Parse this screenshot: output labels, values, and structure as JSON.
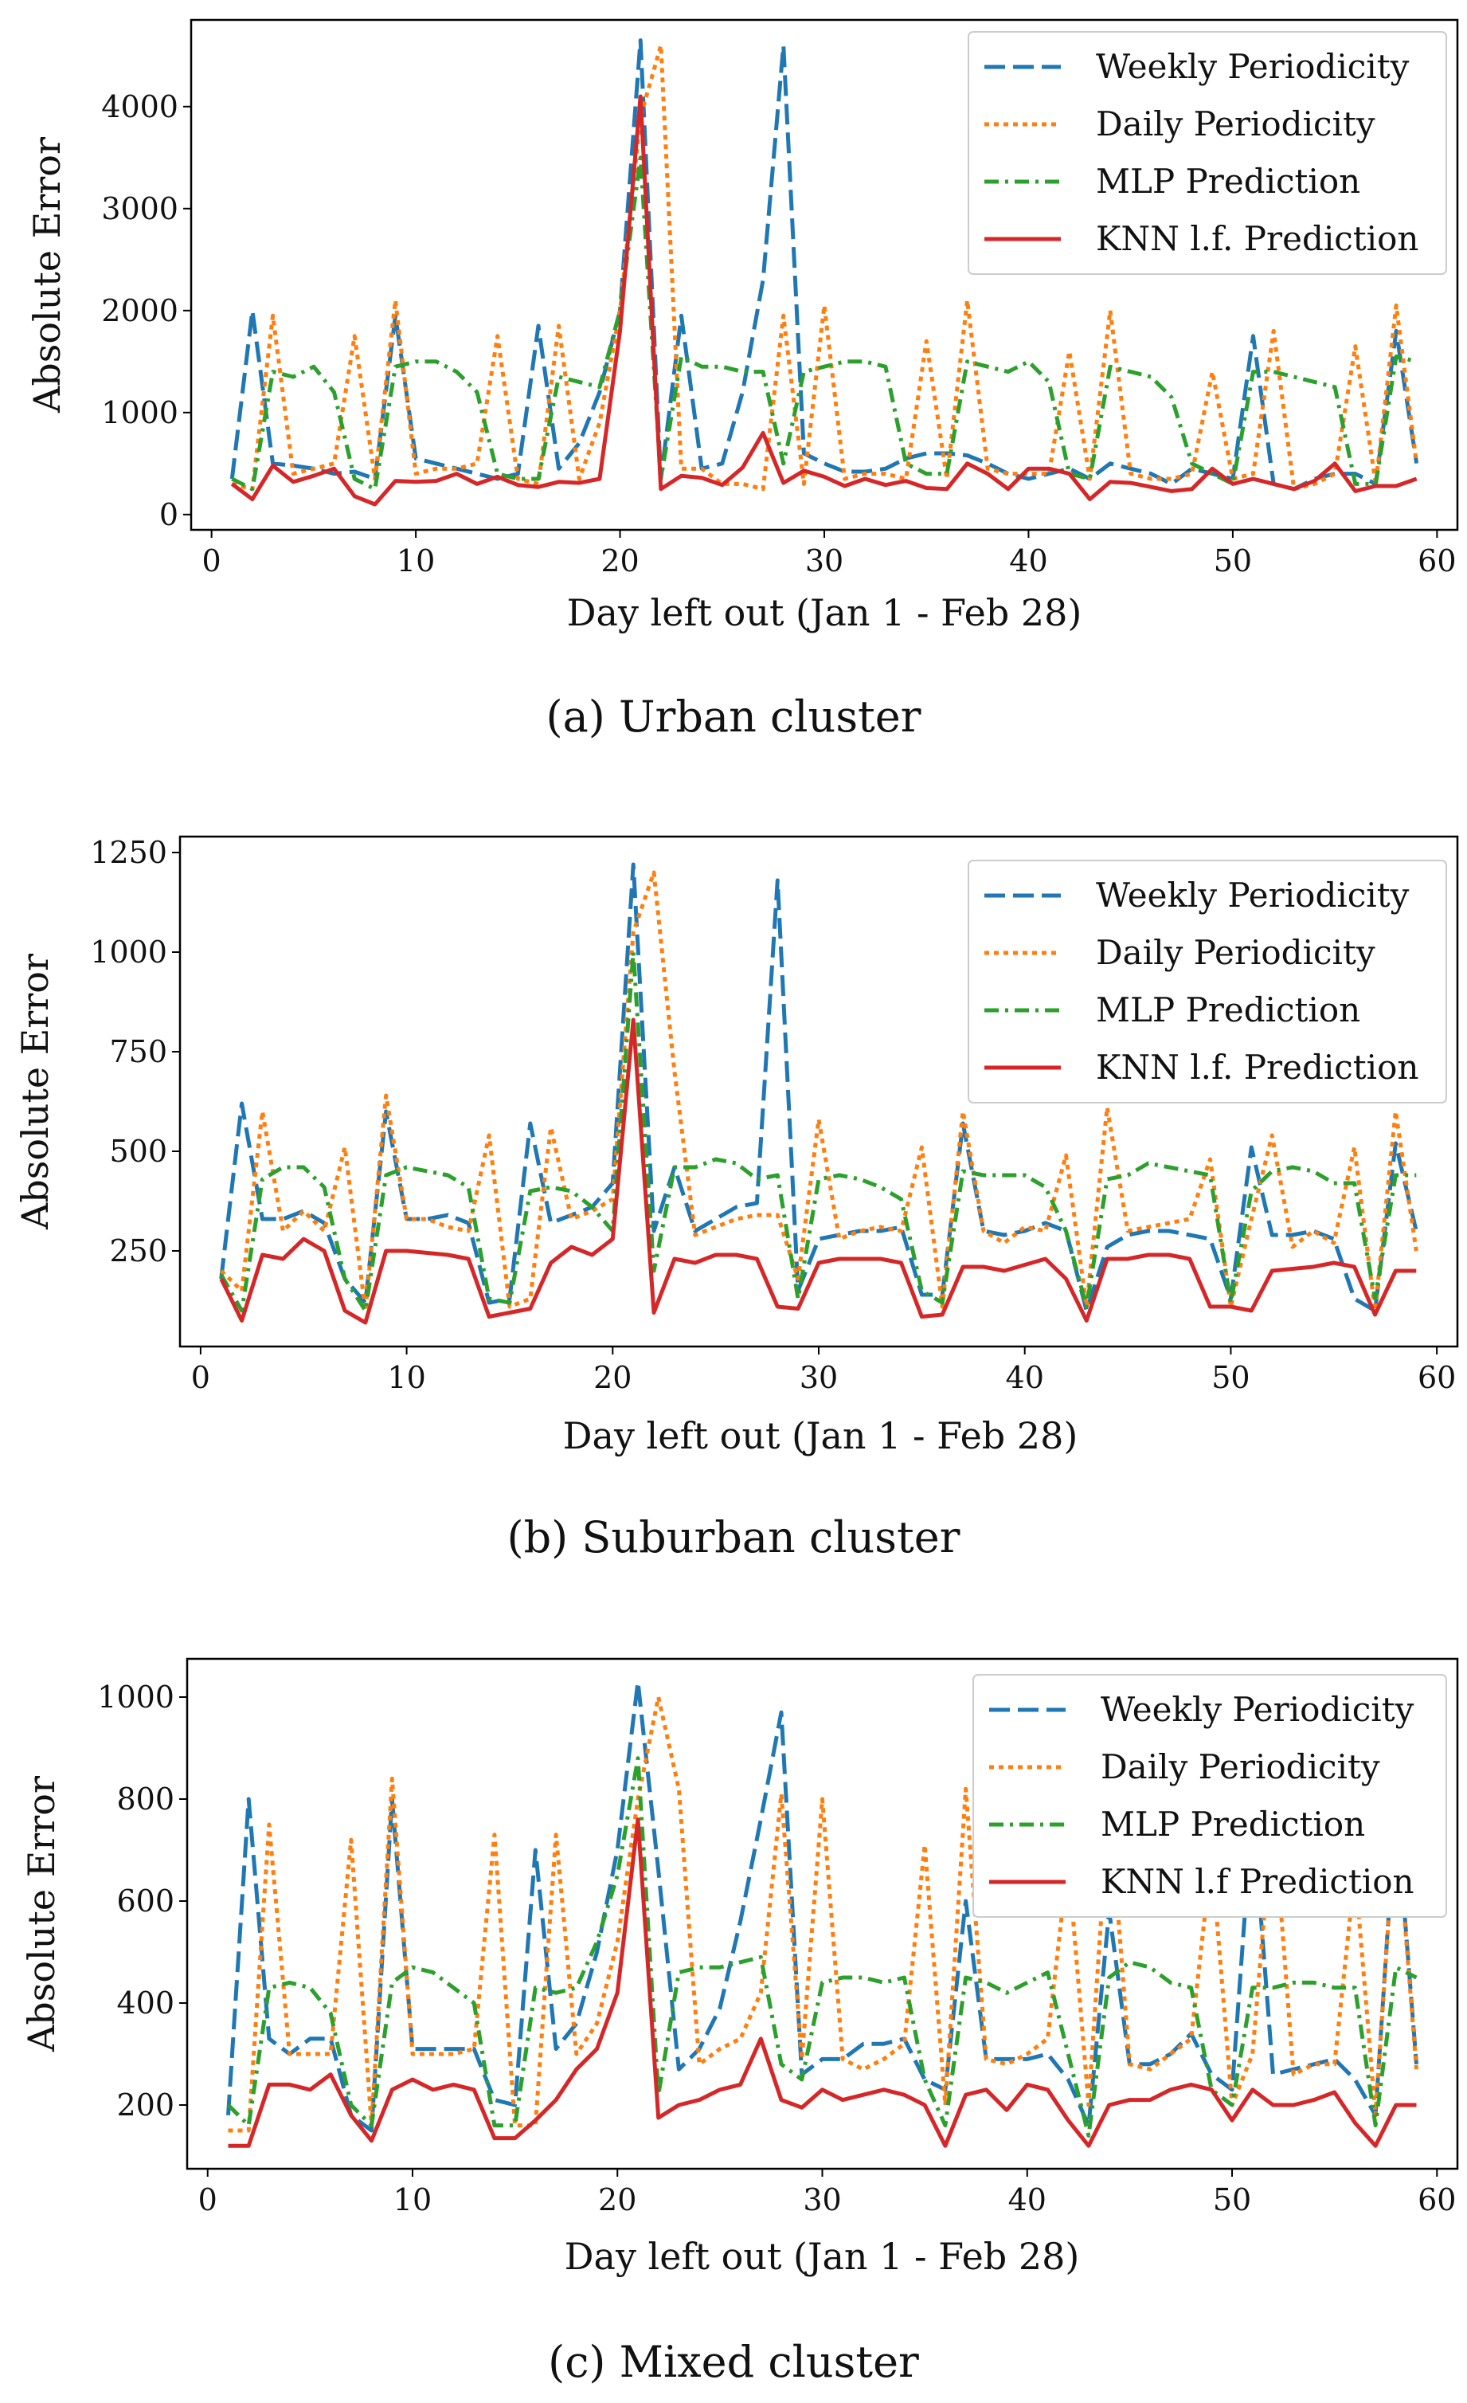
{
  "chart_data": [
    {
      "type": "line",
      "caption": "(a)  Urban cluster",
      "xlabel": "Day left out (Jan 1 - Feb 28)",
      "ylabel": "Absolute Error",
      "xlim": [
        -1,
        61
      ],
      "ylim": [
        -150,
        4850
      ],
      "xticks": [
        0,
        10,
        20,
        30,
        40,
        50,
        60
      ],
      "yticks": [
        0,
        1000,
        2000,
        3000,
        4000
      ],
      "legend_position": "top-right",
      "x": [
        1,
        2,
        3,
        4,
        5,
        6,
        7,
        8,
        9,
        10,
        11,
        12,
        13,
        14,
        15,
        16,
        17,
        18,
        19,
        20,
        21,
        22,
        23,
        24,
        25,
        26,
        27,
        28,
        29,
        30,
        31,
        32,
        33,
        34,
        35,
        36,
        37,
        38,
        39,
        40,
        41,
        42,
        43,
        44,
        45,
        46,
        47,
        48,
        49,
        50,
        51,
        52,
        53,
        54,
        55,
        56,
        57,
        58,
        59
      ],
      "series": [
        {
          "name": "Weekly Periodicity",
          "color": "#1f77b4",
          "style": "dashed",
          "values": [
            350,
            2000,
            500,
            480,
            450,
            400,
            420,
            350,
            1950,
            550,
            500,
            450,
            400,
            350,
            400,
            1850,
            450,
            700,
            1200,
            2000,
            4650,
            350,
            1950,
            450,
            500,
            1200,
            2300,
            4600,
            600,
            500,
            420,
            420,
            450,
            550,
            600,
            600,
            580,
            500,
            400,
            350,
            400,
            450,
            350,
            500,
            450,
            400,
            300,
            450,
            400,
            350,
            1750,
            300,
            250,
            350,
            400,
            400,
            300,
            1800,
            500
          ]
        },
        {
          "name": "Daily Periodicity",
          "color": "#ff7f0e",
          "style": "dotted",
          "values": [
            300,
            250,
            1950,
            400,
            450,
            500,
            1750,
            350,
            2100,
            400,
            450,
            450,
            500,
            1750,
            350,
            300,
            1850,
            350,
            900,
            2000,
            3900,
            4600,
            450,
            450,
            300,
            300,
            250,
            1950,
            300,
            2050,
            350,
            400,
            400,
            350,
            1700,
            350,
            2100,
            450,
            400,
            400,
            400,
            1600,
            350,
            2000,
            400,
            350,
            350,
            400,
            1400,
            350,
            400,
            1800,
            250,
            300,
            400,
            1650,
            300,
            2050,
            500
          ]
        },
        {
          "name": "MLP Prediction",
          "color": "#2ca02c",
          "style": "dashdot",
          "values": [
            350,
            250,
            1400,
            1350,
            1450,
            1200,
            350,
            250,
            1450,
            1500,
            1500,
            1400,
            1200,
            400,
            350,
            350,
            1350,
            1300,
            1250,
            2000,
            3500,
            350,
            1550,
            1450,
            1450,
            1400,
            1400,
            500,
            1400,
            1450,
            1500,
            1500,
            1450,
            500,
            400,
            400,
            1500,
            1450,
            1400,
            1500,
            1300,
            400,
            350,
            1450,
            1400,
            1350,
            1150,
            500,
            400,
            300,
            1400,
            1400,
            1350,
            1300,
            1250,
            300,
            300,
            1550,
            1500
          ]
        },
        {
          "name": "KNN l.f. Prediction",
          "color": "#d62728",
          "style": "solid",
          "values": [
            300,
            150,
            480,
            320,
            380,
            450,
            180,
            100,
            330,
            320,
            330,
            400,
            300,
            370,
            290,
            270,
            320,
            310,
            350,
            1800,
            4100,
            250,
            380,
            360,
            290,
            460,
            800,
            310,
            430,
            370,
            280,
            350,
            290,
            330,
            260,
            250,
            500,
            400,
            250,
            450,
            450,
            400,
            150,
            320,
            310,
            270,
            230,
            250,
            450,
            300,
            350,
            300,
            250,
            330,
            500,
            230,
            280,
            280,
            350
          ]
        }
      ]
    },
    {
      "type": "line",
      "caption": "(b)  Suburban cluster",
      "xlabel": "Day left out (Jan 1 - Feb 28)",
      "ylabel": "Absolute Error",
      "xlim": [
        -1,
        61
      ],
      "ylim": [
        10,
        1290
      ],
      "xticks": [
        0,
        10,
        20,
        30,
        40,
        50,
        60
      ],
      "yticks": [
        250,
        500,
        750,
        1000,
        1250
      ],
      "legend_position": "top-right",
      "x": [
        1,
        2,
        3,
        4,
        5,
        6,
        7,
        8,
        9,
        10,
        11,
        12,
        13,
        14,
        15,
        16,
        17,
        18,
        19,
        20,
        21,
        22,
        23,
        24,
        25,
        26,
        27,
        28,
        29,
        30,
        31,
        32,
        33,
        34,
        35,
        36,
        37,
        38,
        39,
        40,
        41,
        42,
        43,
        44,
        45,
        46,
        47,
        48,
        49,
        50,
        51,
        52,
        53,
        54,
        55,
        56,
        57,
        58,
        59
      ],
      "series": [
        {
          "name": "Weekly Periodicity",
          "color": "#1f77b4",
          "style": "dashed",
          "values": [
            180,
            620,
            330,
            330,
            350,
            320,
            180,
            120,
            600,
            330,
            330,
            340,
            320,
            120,
            130,
            570,
            320,
            340,
            360,
            420,
            1220,
            300,
            460,
            300,
            330,
            360,
            370,
            1180,
            150,
            280,
            290,
            300,
            300,
            310,
            140,
            140,
            570,
            300,
            290,
            300,
            320,
            300,
            100,
            260,
            290,
            300,
            300,
            290,
            280,
            130,
            510,
            290,
            290,
            300,
            280,
            130,
            100,
            520,
            300
          ]
        },
        {
          "name": "Daily Periodicity",
          "color": "#ff7f0e",
          "style": "dotted",
          "values": [
            200,
            150,
            600,
            300,
            350,
            300,
            510,
            100,
            640,
            330,
            330,
            310,
            300,
            540,
            110,
            130,
            560,
            330,
            350,
            380,
            1050,
            1200,
            700,
            290,
            310,
            330,
            340,
            340,
            180,
            580,
            280,
            300,
            310,
            300,
            510,
            110,
            600,
            300,
            270,
            310,
            300,
            490,
            110,
            610,
            300,
            310,
            320,
            330,
            480,
            110,
            330,
            540,
            260,
            300,
            270,
            510,
            100,
            600,
            250
          ]
        },
        {
          "name": "MLP Prediction",
          "color": "#2ca02c",
          "style": "dashdot",
          "values": [
            190,
            100,
            430,
            460,
            460,
            410,
            180,
            100,
            440,
            460,
            450,
            440,
            410,
            130,
            120,
            400,
            410,
            400,
            360,
            300,
            1000,
            200,
            460,
            460,
            480,
            470,
            430,
            440,
            130,
            430,
            440,
            430,
            410,
            380,
            150,
            120,
            450,
            440,
            440,
            440,
            410,
            300,
            110,
            430,
            440,
            470,
            460,
            450,
            440,
            120,
            400,
            450,
            460,
            450,
            420,
            420,
            130,
            440,
            440
          ]
        },
        {
          "name": "KNN l.f. Prediction",
          "color": "#d62728",
          "style": "solid",
          "values": [
            180,
            75,
            240,
            230,
            280,
            250,
            100,
            70,
            250,
            250,
            245,
            240,
            230,
            85,
            95,
            105,
            220,
            260,
            240,
            280,
            830,
            95,
            230,
            220,
            240,
            240,
            230,
            110,
            105,
            220,
            230,
            230,
            230,
            220,
            85,
            90,
            210,
            210,
            200,
            215,
            230,
            180,
            75,
            230,
            230,
            240,
            240,
            230,
            110,
            110,
            100,
            200,
            205,
            210,
            220,
            210,
            90,
            200,
            200
          ]
        }
      ]
    },
    {
      "type": "line",
      "caption": "(c)  Mixed cluster",
      "xlabel": "Day left out (Jan 1 - Feb 28)",
      "ylabel": "Absolute Error",
      "xlim": [
        -1,
        61
      ],
      "ylim": [
        75,
        1075
      ],
      "xticks": [
        0,
        10,
        20,
        30,
        40,
        50,
        60
      ],
      "yticks": [
        200,
        400,
        600,
        800,
        1000
      ],
      "legend_position": "top-right",
      "x": [
        1,
        2,
        3,
        4,
        5,
        6,
        7,
        8,
        9,
        10,
        11,
        12,
        13,
        14,
        15,
        16,
        17,
        18,
        19,
        20,
        21,
        22,
        23,
        24,
        25,
        26,
        27,
        28,
        29,
        30,
        31,
        32,
        33,
        34,
        35,
        36,
        37,
        38,
        39,
        40,
        41,
        42,
        43,
        44,
        45,
        46,
        47,
        48,
        49,
        50,
        51,
        52,
        53,
        54,
        55,
        56,
        57,
        58,
        59
      ],
      "series": [
        {
          "name": "Weekly Periodicity",
          "color": "#1f77b4",
          "style": "dashed",
          "values": [
            180,
            800,
            330,
            300,
            330,
            330,
            180,
            150,
            800,
            310,
            310,
            310,
            310,
            210,
            200,
            700,
            310,
            360,
            500,
            700,
            1030,
            660,
            270,
            310,
            390,
            560,
            760,
            970,
            260,
            290,
            290,
            320,
            320,
            330,
            250,
            230,
            600,
            290,
            290,
            290,
            300,
            250,
            160,
            580,
            280,
            280,
            300,
            340,
            260,
            230,
            780,
            260,
            270,
            280,
            290,
            250,
            180,
            790,
            280
          ]
        },
        {
          "name": "Daily Periodicity",
          "color": "#ff7f0e",
          "style": "dotted",
          "values": [
            150,
            150,
            750,
            300,
            300,
            300,
            720,
            160,
            840,
            300,
            300,
            300,
            310,
            730,
            160,
            160,
            730,
            300,
            360,
            520,
            800,
            1000,
            820,
            280,
            310,
            330,
            420,
            810,
            290,
            800,
            290,
            270,
            290,
            320,
            710,
            200,
            820,
            290,
            280,
            300,
            330,
            680,
            200,
            800,
            280,
            270,
            300,
            330,
            690,
            200,
            300,
            780,
            260,
            280,
            280,
            660,
            180,
            780,
            270
          ]
        },
        {
          "name": "MLP Prediction",
          "color": "#2ca02c",
          "style": "dashdot",
          "values": [
            200,
            160,
            430,
            440,
            430,
            380,
            200,
            160,
            440,
            470,
            460,
            430,
            400,
            160,
            160,
            430,
            420,
            430,
            520,
            650,
            880,
            220,
            460,
            470,
            470,
            480,
            490,
            280,
            250,
            440,
            450,
            450,
            440,
            450,
            250,
            160,
            450,
            440,
            420,
            440,
            460,
            300,
            140,
            450,
            480,
            470,
            440,
            430,
            230,
            200,
            430,
            430,
            440,
            440,
            430,
            430,
            160,
            470,
            450
          ]
        },
        {
          "name": "KNN l.f Prediction",
          "color": "#d62728",
          "style": "solid",
          "values": [
            120,
            120,
            240,
            240,
            230,
            260,
            180,
            130,
            230,
            250,
            230,
            240,
            230,
            135,
            135,
            170,
            210,
            270,
            310,
            420,
            760,
            175,
            200,
            210,
            230,
            240,
            330,
            210,
            195,
            230,
            210,
            220,
            230,
            220,
            200,
            120,
            220,
            230,
            190,
            240,
            230,
            170,
            120,
            200,
            210,
            210,
            230,
            240,
            230,
            170,
            230,
            200,
            200,
            210,
            225,
            165,
            120,
            200,
            200
          ]
        }
      ]
    }
  ]
}
